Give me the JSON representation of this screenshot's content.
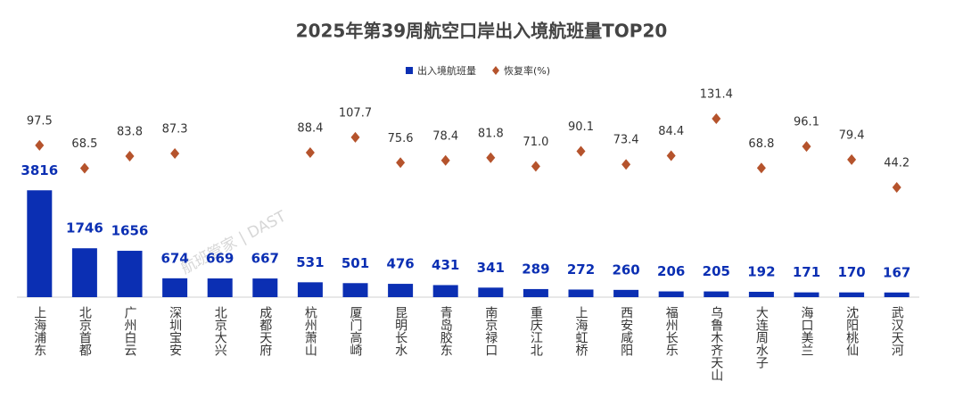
{
  "chart_data": {
    "type": "bar",
    "title": "2025年第39周航空口岸出入境航班量TOP20",
    "watermark": "航班管家 | DAST",
    "categories": [
      "上海浦东",
      "北京首都",
      "广州白云",
      "深圳宝安",
      "北京大兴",
      "成都天府",
      "杭州萧山",
      "厦门高崎",
      "昆明长水",
      "青岛胶东",
      "南京禄口",
      "重庆江北",
      "上海虹桥",
      "西安咸阳",
      "福州长乐",
      "乌鲁木齐天山",
      "大连周水子",
      "海口美兰",
      "沈阳桃仙",
      "武汉天河"
    ],
    "series": [
      {
        "name": "出入境航班量",
        "type": "bar",
        "color": "#0b2fb3",
        "values": [
          3816,
          1746,
          1656,
          674,
          669,
          667,
          531,
          501,
          476,
          431,
          341,
          289,
          272,
          260,
          206,
          205,
          192,
          171,
          170,
          167
        ]
      },
      {
        "name": "恢复率(%)",
        "type": "scatter",
        "axis": "y2",
        "color": "#b5532c",
        "values": [
          97.5,
          68.5,
          83.8,
          87.3,
          null,
          null,
          88.4,
          107.7,
          75.6,
          78.4,
          81.8,
          71.0,
          90.1,
          73.4,
          84.4,
          131.4,
          68.8,
          96.1,
          79.4,
          44.2
        ],
        "value_labels": [
          "97.5",
          "68.5",
          "83.8",
          "87.3",
          null,
          null,
          "88.4",
          "107.7",
          "75.6",
          "78.4",
          "81.8",
          "71.0",
          "90.1",
          "73.4",
          "84.4",
          "131.4",
          "68.8",
          "96.1",
          "79.4",
          "44.2"
        ]
      }
    ],
    "ylim": [
      0,
      8700
    ],
    "y2lim": [
      -95,
      214
    ],
    "legend": "top"
  }
}
